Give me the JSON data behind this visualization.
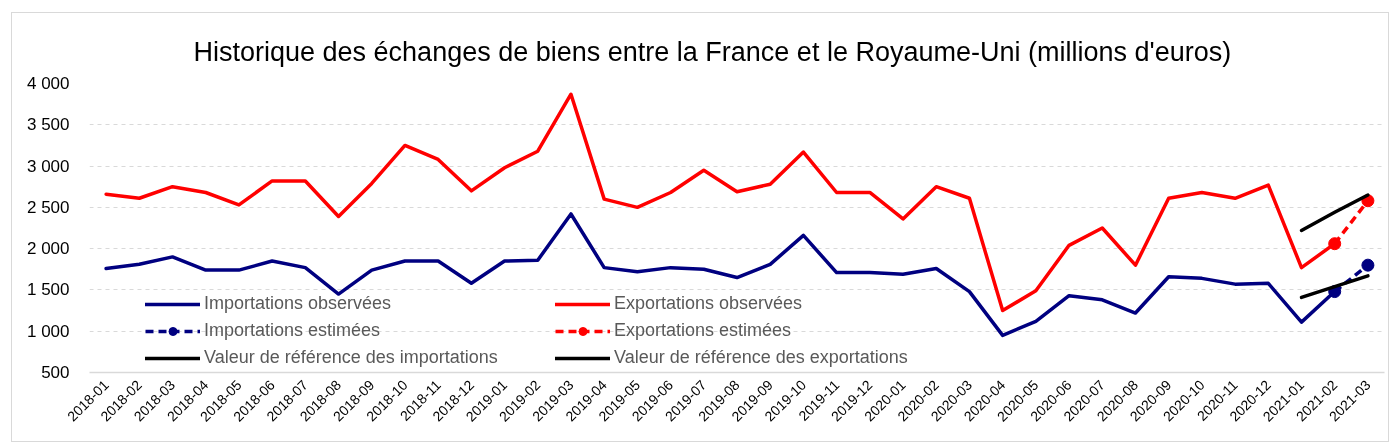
{
  "chart_data": {
    "type": "line",
    "title": "Historique des échanges de biens entre la France et le Royaume-Uni (millions d'euros)",
    "categories": [
      "2018-01",
      "2018-02",
      "2018-03",
      "2018-04",
      "2018-05",
      "2018-06",
      "2018-07",
      "2018-08",
      "2018-09",
      "2018-10",
      "2018-11",
      "2018-12",
      "2019-01",
      "2019-02",
      "2019-03",
      "2019-04",
      "2019-05",
      "2019-06",
      "2019-07",
      "2019-08",
      "2019-09",
      "2019-10",
      "2019-11",
      "2019-12",
      "2020-01",
      "2020-02",
      "2020-03",
      "2020-04",
      "2020-05",
      "2020-06",
      "2020-07",
      "2020-08",
      "2020-09",
      "2020-10",
      "2020-11",
      "2020-12",
      "2021-01",
      "2021-02",
      "2021-03"
    ],
    "series": [
      {
        "name": "Importations observées",
        "color": "#000080",
        "line_style": "solid",
        "marker": "none",
        "values": [
          1760,
          1810,
          1900,
          1740,
          1740,
          1850,
          1770,
          1450,
          1740,
          1850,
          1850,
          1580,
          1850,
          1860,
          2420,
          1770,
          1720,
          1770,
          1750,
          1650,
          1810,
          2160,
          1710,
          1710,
          1690,
          1760,
          1480,
          950,
          1120,
          1430,
          1380,
          1220,
          1660,
          1640,
          1570,
          1580,
          1110,
          1480,
          null
        ]
      },
      {
        "name": "Exportations observées",
        "color": "#ff0000",
        "line_style": "solid",
        "marker": "none",
        "values": [
          2660,
          2610,
          2750,
          2680,
          2530,
          2820,
          2820,
          2390,
          2790,
          3250,
          3080,
          2700,
          2980,
          3180,
          3870,
          2600,
          2500,
          2680,
          2950,
          2690,
          2780,
          3170,
          2680,
          2680,
          2360,
          2750,
          2610,
          1250,
          1490,
          2040,
          2250,
          1800,
          2610,
          2680,
          2610,
          2770,
          1770,
          2060,
          null
        ]
      },
      {
        "name": "Importations estimées",
        "color": "#000080",
        "line_style": "dashed",
        "marker": "circle",
        "values": [
          null,
          null,
          null,
          null,
          null,
          null,
          null,
          null,
          null,
          null,
          null,
          null,
          null,
          null,
          null,
          null,
          null,
          null,
          null,
          null,
          null,
          null,
          null,
          null,
          null,
          null,
          null,
          null,
          null,
          null,
          null,
          null,
          null,
          null,
          null,
          null,
          null,
          1480,
          1800
        ]
      },
      {
        "name": "Exportations estimées",
        "color": "#ff0000",
        "line_style": "dashed",
        "marker": "circle",
        "values": [
          null,
          null,
          null,
          null,
          null,
          null,
          null,
          null,
          null,
          null,
          null,
          null,
          null,
          null,
          null,
          null,
          null,
          null,
          null,
          null,
          null,
          null,
          null,
          null,
          null,
          null,
          null,
          null,
          null,
          null,
          null,
          null,
          null,
          null,
          null,
          null,
          null,
          2060,
          2580
        ]
      },
      {
        "name": "Valeur de référence des importations",
        "color": "#000000",
        "line_style": "solid",
        "marker": "none",
        "values": [
          null,
          null,
          null,
          null,
          null,
          null,
          null,
          null,
          null,
          null,
          null,
          null,
          null,
          null,
          null,
          null,
          null,
          null,
          null,
          null,
          null,
          null,
          null,
          null,
          null,
          null,
          null,
          null,
          null,
          null,
          null,
          null,
          null,
          null,
          null,
          null,
          1410,
          1540,
          1670
        ]
      },
      {
        "name": "Valeur de référence des exportations",
        "color": "#000000",
        "line_style": "solid",
        "marker": "none",
        "values": [
          null,
          null,
          null,
          null,
          null,
          null,
          null,
          null,
          null,
          null,
          null,
          null,
          null,
          null,
          null,
          null,
          null,
          null,
          null,
          null,
          null,
          null,
          null,
          null,
          null,
          null,
          null,
          null,
          null,
          null,
          null,
          null,
          null,
          null,
          null,
          null,
          2220,
          2440,
          2650
        ]
      }
    ],
    "ylim": [
      500,
      4000
    ],
    "yticks": [
      500,
      {
        "value": 1000,
        "label": "1 000"
      },
      {
        "value": 1500,
        "label": "1 500"
      },
      {
        "value": 2000,
        "label": "2 000"
      },
      {
        "value": 2500,
        "label": "2 500"
      },
      {
        "value": 3000,
        "label": "3 000"
      },
      {
        "value": 3500,
        "label": "3 500"
      },
      {
        "value": 4000,
        "label": "4 000"
      }
    ],
    "grid": "y",
    "legend": "bottom left"
  }
}
